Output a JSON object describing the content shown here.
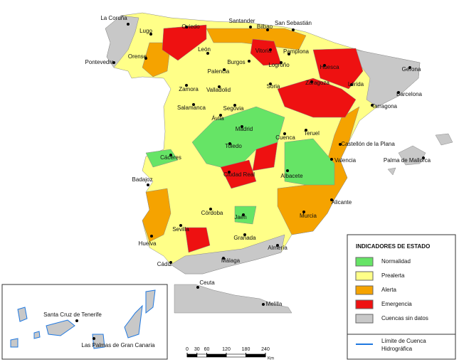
{
  "cities": [
    "La Coruña",
    "Lugo",
    "Oviedo",
    "Santander",
    "Bilbao",
    "San Sebastián",
    "Pontevedra",
    "Orense",
    "León",
    "Burgos",
    "Vitoria",
    "Logroño",
    "Pamplona",
    "Huesca",
    "Gerona",
    "Palencia",
    "Soria",
    "Zaragoza",
    "Lérida",
    "Barcelona",
    "Zamora",
    "Valladolid",
    "Tarragona",
    "Salamanca",
    "Segovia",
    "Ávila",
    "Madrid",
    "Teruel",
    "Cuenca",
    "Castellón de la Plana",
    "Palma de Mallorca",
    "Cáceres",
    "Toledo",
    "Valencia",
    "Ciudad Real",
    "Badajoz",
    "Albacete",
    "Alicante",
    "Murcia",
    "Córdoba",
    "Jaén",
    "Granada",
    "Sevilla",
    "Huelva",
    "Almería",
    "Málaga",
    "Cádiz",
    "Ceuta",
    "Melilla",
    "Santa Cruz de Tenerife",
    "Las Palmas de Gran Canaria"
  ],
  "legend": {
    "title": "INDICADORES DE ESTADO",
    "items": [
      {
        "label": "Normalidad",
        "color": "#66e466"
      },
      {
        "label": "Prealerta",
        "color": "#ffff88"
      },
      {
        "label": "Alerta",
        "color": "#f5a300"
      },
      {
        "label": "Emergencia",
        "color": "#ee1111"
      },
      {
        "label": "Cuencas sin datos",
        "color": "#c8c8c8"
      }
    ],
    "boundary": {
      "line1": "Límite de Cuenca",
      "line2": "Hidrográfica",
      "color": "#1f78e0"
    }
  },
  "scale_bar": {
    "ticks": [
      0,
      30,
      60,
      120,
      180,
      240
    ],
    "unit": "Km"
  }
}
